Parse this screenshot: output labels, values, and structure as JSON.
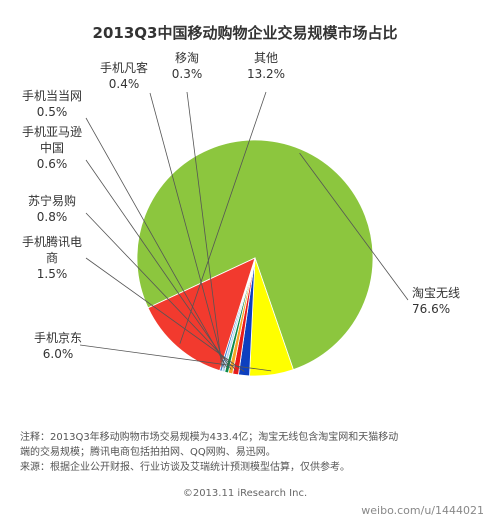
{
  "chart_data": {
    "type": "pie",
    "title": "2013Q3中国移动购物企业交易规模市场占比",
    "slices": [
      {
        "name": "淘宝无线",
        "label_lines": [
          "淘宝无线",
          "76.6%"
        ],
        "value": 76.6,
        "color": "#8cc63e"
      },
      {
        "name": "手机京东",
        "label_lines": [
          "手机京东",
          "6.0%"
        ],
        "value": 6.0,
        "color": "#ffff00"
      },
      {
        "name": "手机腾讯电商",
        "label_lines": [
          "手机腾讯电",
          "商",
          "1.5%"
        ],
        "value": 1.5,
        "color": "#0d3fbf"
      },
      {
        "name": "苏宁易购",
        "label_lines": [
          "苏宁易购",
          "0.8%"
        ],
        "value": 0.8,
        "color": "#e81b1b"
      },
      {
        "name": "手机亚马逊中国",
        "label_lines": [
          "手机亚马逊",
          "中国",
          "0.6%"
        ],
        "value": 0.6,
        "color": "#f5a623"
      },
      {
        "name": "手机当当网",
        "label_lines": [
          "手机当当网",
          "0.5%"
        ],
        "value": 0.5,
        "color": "#0b8a4a"
      },
      {
        "name": "手机凡客",
        "label_lines": [
          "手机凡客",
          "0.4%"
        ],
        "value": 0.4,
        "color": "#b0d8f0"
      },
      {
        "name": "移淘",
        "label_lines": [
          "移淘",
          "0.3%"
        ],
        "value": 0.3,
        "color": "#3a78c8"
      },
      {
        "name": "其他",
        "label_lines": [
          "其他",
          "13.2%"
        ],
        "value": 13.2,
        "color": "#f23a2e"
      }
    ]
  },
  "notes": {
    "line1": "注释：2013Q3年移动购物市场交易规模为433.4亿；淘宝无线包含淘宝网和天猫移动",
    "line2": "端的交易规模；腾讯电商包括拍拍网、QQ网购、易迅网。",
    "line3": "来源：根据企业公开财报、行业访谈及艾瑞统计预测模型估算，仅供参考。"
  },
  "copyright": "©2013.11 iResearch Inc.",
  "watermark": "weibo.com/u/1444021"
}
